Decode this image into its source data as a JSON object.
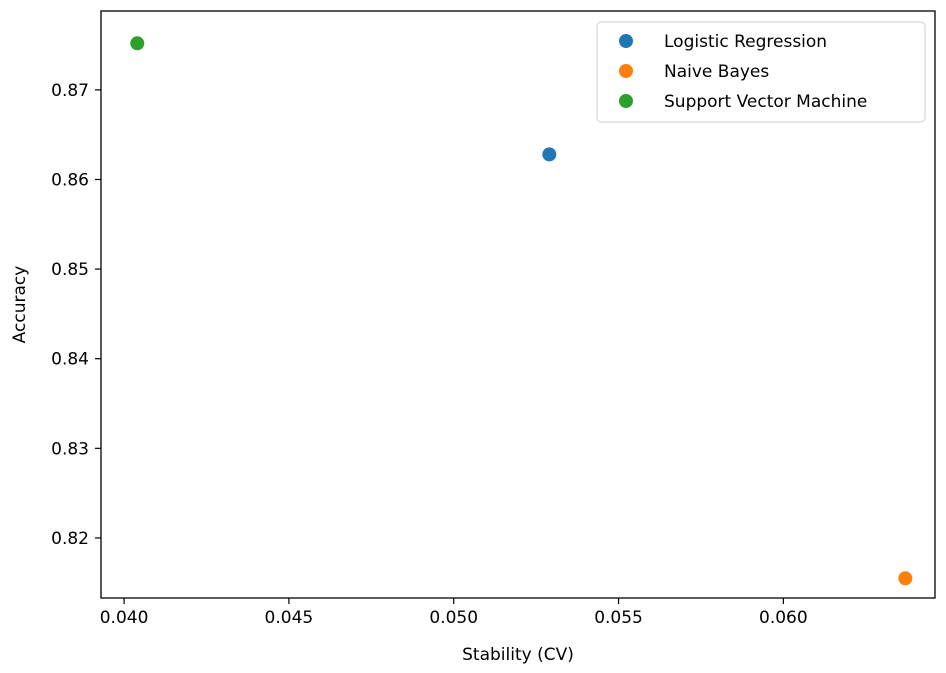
{
  "chart_data": {
    "type": "scatter",
    "title": "",
    "xlabel": "Stability (CV)",
    "ylabel": "Accuracy",
    "xlim": [
      0.0393,
      0.0646
    ],
    "ylim": [
      0.8133,
      0.8788
    ],
    "xticks": [
      0.04,
      0.045,
      0.05,
      0.055,
      0.06
    ],
    "xtick_labels": [
      "0.040",
      "0.045",
      "0.050",
      "0.055",
      "0.060"
    ],
    "yticks": [
      0.82,
      0.83,
      0.84,
      0.85,
      0.86,
      0.87
    ],
    "ytick_labels": [
      "0.82",
      "0.83",
      "0.84",
      "0.85",
      "0.86",
      "0.87"
    ],
    "grid": false,
    "legend_position": "top-right",
    "series": [
      {
        "name": "Logistic Regression",
        "color": "#1f77b4",
        "x": [
          0.0529
        ],
        "y": [
          0.8628
        ]
      },
      {
        "name": "Naive Bayes",
        "color": "#ff7f0e",
        "x": [
          0.0637
        ],
        "y": [
          0.8155
        ]
      },
      {
        "name": "Support Vector Machine",
        "color": "#2ca02c",
        "x": [
          0.0404
        ],
        "y": [
          0.8752
        ]
      }
    ]
  }
}
